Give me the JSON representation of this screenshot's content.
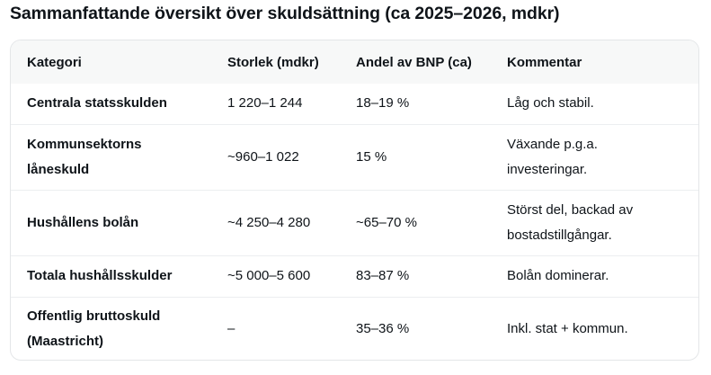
{
  "title": "Sammanfattande översikt över skuldsättning (ca 2025–2026, mdkr)",
  "table": {
    "headers": [
      "Kategori",
      "Storlek (mdkr)",
      "Andel av BNP (ca)",
      "Kommentar"
    ],
    "rows": [
      {
        "kategori": "Centrala statsskulden",
        "storlek": "1 220–1 244",
        "andel": "18–19 %",
        "kommentar": "Låg och stabil."
      },
      {
        "kategori": "Kommunsektorns låneskuld",
        "storlek": "~960–1 022",
        "andel": "15 %",
        "kommentar": "Växande p.g.a. investeringar."
      },
      {
        "kategori": "Hushållens bolån",
        "storlek": "~4 250–4 280",
        "andel": "~65–70 %",
        "kommentar": "Störst del, backad av bostadstillgångar."
      },
      {
        "kategori": "Totala hushållsskulder",
        "storlek": "~5 000–5 600",
        "andel": "83–87 %",
        "kommentar": "Bolån dominerar."
      },
      {
        "kategori": "Offentlig bruttoskuld (Maastricht)",
        "storlek": "–",
        "andel": "35–36 %",
        "kommentar": "Inkl. stat + kommun."
      }
    ]
  }
}
